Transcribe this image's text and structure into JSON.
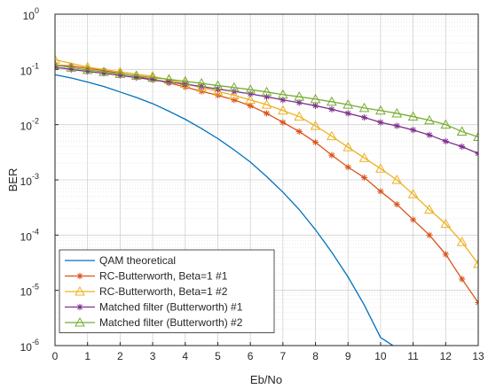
{
  "chart_data": {
    "type": "line",
    "xlabel": "Eb/No",
    "ylabel": "BER",
    "xlim": [
      0,
      13
    ],
    "ylim": [
      1e-06,
      1
    ],
    "yscale": "log",
    "grid": true,
    "legend_position": "bottom-left",
    "x_ticks": [
      "0",
      "1",
      "2",
      "3",
      "4",
      "5",
      "6",
      "7",
      "8",
      "9",
      "10",
      "11",
      "12",
      "13"
    ],
    "y_ticks": [
      {
        "base": "10",
        "exp": "0"
      },
      {
        "base": "10",
        "exp": "-1"
      },
      {
        "base": "10",
        "exp": "-2"
      },
      {
        "base": "10",
        "exp": "-3"
      },
      {
        "base": "10",
        "exp": "-4"
      },
      {
        "base": "10",
        "exp": "-5"
      },
      {
        "base": "10",
        "exp": "-6"
      }
    ],
    "series": [
      {
        "name": "QAM theoretical",
        "color": "#0072BD",
        "marker": "none",
        "x": [
          0,
          0.5,
          1,
          1.5,
          2,
          2.5,
          3,
          3.5,
          4,
          4.5,
          5,
          5.5,
          6,
          6.5,
          7,
          7.5,
          8,
          8.5,
          9,
          9.5,
          10,
          10.5
        ],
        "y": [
          0.08,
          0.07,
          0.059,
          0.049,
          0.039,
          0.031,
          0.024,
          0.0175,
          0.0125,
          0.0085,
          0.0056,
          0.0035,
          0.0021,
          0.00115,
          0.0006,
          0.00029,
          0.000125,
          4.9e-05,
          1.75e-05,
          5.4e-06,
          1.4e-06,
          9e-07
        ]
      },
      {
        "name": "RC-Butterworth, Beta=1 #1",
        "color": "#D95319",
        "marker": "star",
        "x": [
          0,
          0.5,
          1,
          1.5,
          2,
          2.5,
          3,
          3.5,
          4,
          4.5,
          5,
          5.5,
          6,
          6.5,
          7,
          7.5,
          8,
          8.5,
          9,
          9.5,
          10,
          10.5,
          11,
          11.5,
          12,
          12.5,
          13
        ],
        "y": [
          0.12,
          0.115,
          0.105,
          0.095,
          0.085,
          0.075,
          0.066,
          0.057,
          0.048,
          0.04,
          0.034,
          0.028,
          0.022,
          0.016,
          0.011,
          0.0075,
          0.0048,
          0.0028,
          0.0017,
          0.0011,
          0.00062,
          0.00036,
          0.00019,
          0.0001,
          4.5e-05,
          1.6e-05,
          6e-06
        ]
      },
      {
        "name": "RC-Butterworth, Beta=1 #2",
        "color": "#EDB120",
        "marker": "triangle",
        "x": [
          0,
          1,
          2,
          3,
          3.5,
          4,
          4.5,
          5,
          5.5,
          6,
          6.5,
          7,
          7.5,
          8,
          8.5,
          9,
          9.5,
          10,
          10.5,
          11,
          11.5,
          12,
          12.5,
          13
        ],
        "y": [
          0.15,
          0.11,
          0.09,
          0.075,
          0.065,
          0.055,
          0.047,
          0.04,
          0.034,
          0.028,
          0.023,
          0.018,
          0.014,
          0.0095,
          0.0062,
          0.0039,
          0.0025,
          0.0016,
          0.001,
          0.00055,
          0.00029,
          0.00016,
          7.5e-05,
          3e-05
        ]
      },
      {
        "name": "Matched filter (Butterworth) #1",
        "color": "#7E2F8E",
        "marker": "star",
        "x": [
          0,
          0.5,
          1,
          1.5,
          2,
          2.5,
          3,
          3.5,
          4,
          4.5,
          5,
          5.5,
          6,
          6.5,
          7,
          7.5,
          8,
          8.5,
          9,
          9.5,
          10,
          10.5,
          11,
          11.5,
          12,
          12.5,
          13
        ],
        "y": [
          0.11,
          0.1,
          0.092,
          0.085,
          0.078,
          0.071,
          0.065,
          0.059,
          0.054,
          0.049,
          0.044,
          0.04,
          0.036,
          0.032,
          0.028,
          0.025,
          0.022,
          0.019,
          0.016,
          0.0135,
          0.011,
          0.0095,
          0.008,
          0.0065,
          0.005,
          0.004,
          0.003
        ]
      },
      {
        "name": "Matched filter (Butterworth) #2",
        "color": "#77AC30",
        "marker": "triangle",
        "x": [
          0,
          0.5,
          1,
          1.5,
          2,
          2.5,
          3,
          3.5,
          4,
          4.5,
          5,
          5.5,
          6,
          6.5,
          7,
          7.5,
          8,
          8.5,
          9,
          9.5,
          10,
          10.5,
          11,
          11.5,
          12,
          12.5,
          13
        ],
        "y": [
          0.12,
          0.108,
          0.098,
          0.09,
          0.083,
          0.077,
          0.071,
          0.066,
          0.061,
          0.056,
          0.051,
          0.047,
          0.043,
          0.039,
          0.035,
          0.032,
          0.029,
          0.026,
          0.023,
          0.02,
          0.018,
          0.016,
          0.014,
          0.012,
          0.01,
          0.0075,
          0.006
        ]
      }
    ]
  }
}
